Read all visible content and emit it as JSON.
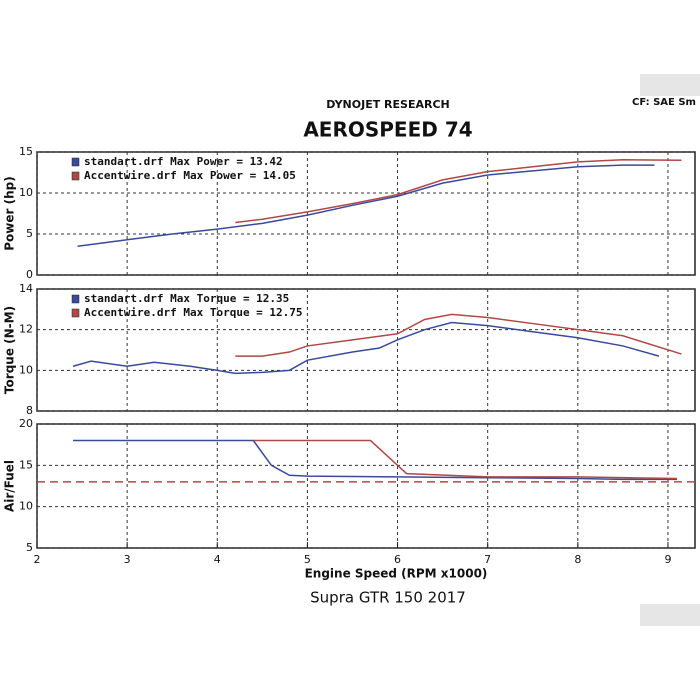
{
  "header": {
    "org": "DYNOJET RESEARCH",
    "title": "AEROSPEED 74",
    "cf": "CF: SAE  Sm"
  },
  "caption": "Supra GTR 150 2017",
  "chart_data": [
    {
      "type": "line",
      "y_label": "Power (hp)",
      "ylim": [
        0,
        15
      ],
      "yticks": [
        0,
        5,
        10,
        15
      ],
      "grid": true,
      "series": [
        {
          "name": "standart.drf Max Power = 13.42",
          "color": "#3a4a9a",
          "x": [
            2.45,
            3,
            3.5,
            4,
            4.5,
            5,
            5.5,
            6,
            6.5,
            7,
            7.5,
            8,
            8.5,
            8.85
          ],
          "values": [
            3.5,
            4.3,
            5.0,
            5.6,
            6.3,
            7.3,
            8.5,
            9.6,
            11.2,
            12.2,
            12.7,
            13.2,
            13.4,
            13.4
          ]
        },
        {
          "name": "Accentwire.drf Max Power = 14.05",
          "color": "#b04848",
          "x": [
            4.2,
            4.5,
            5,
            5.5,
            6,
            6.5,
            7,
            7.5,
            8,
            8.5,
            9.15
          ],
          "values": [
            6.4,
            6.8,
            7.7,
            8.7,
            9.8,
            11.6,
            12.6,
            13.2,
            13.8,
            14.05,
            14.0
          ]
        }
      ]
    },
    {
      "type": "line",
      "y_label": "Torque (N-M)",
      "ylim": [
        8,
        14
      ],
      "yticks": [
        8,
        10,
        12,
        14
      ],
      "grid": true,
      "series": [
        {
          "name": "standart.drf Max Torque = 12.35",
          "color": "#3a4a9a",
          "x": [
            2.4,
            2.6,
            3,
            3.3,
            3.7,
            4,
            4.2,
            4.5,
            4.8,
            5,
            5.5,
            5.8,
            6,
            6.3,
            6.6,
            7,
            7.5,
            8,
            8.5,
            8.9
          ],
          "values": [
            10.2,
            10.45,
            10.2,
            10.4,
            10.2,
            10.0,
            9.85,
            9.9,
            10.0,
            10.5,
            10.9,
            11.1,
            11.5,
            12.0,
            12.35,
            12.2,
            11.9,
            11.6,
            11.2,
            10.7
          ]
        },
        {
          "name": "Accentwire.drf Max Torque = 12.75",
          "color": "#b04848",
          "x": [
            4.2,
            4.5,
            4.8,
            5,
            5.5,
            6,
            6.3,
            6.6,
            7,
            7.5,
            8,
            8.5,
            9.15
          ],
          "values": [
            10.7,
            10.7,
            10.9,
            11.2,
            11.5,
            11.8,
            12.5,
            12.75,
            12.6,
            12.3,
            12.0,
            11.7,
            10.8
          ]
        }
      ]
    },
    {
      "type": "line",
      "y_label": "Air/Fuel",
      "x_label": "Engine Speed (RPM x1000)",
      "xlim": [
        2,
        9.3
      ],
      "xticks": [
        2,
        3,
        4,
        5,
        6,
        7,
        8,
        9
      ],
      "ylim": [
        5,
        20
      ],
      "yticks": [
        5,
        10,
        15,
        20
      ],
      "grid": true,
      "reference_line": {
        "value": 13,
        "color": "#b04848"
      },
      "series": [
        {
          "color": "#3a4a9a",
          "x": [
            2.4,
            4.4,
            4.6,
            4.8,
            5,
            6,
            7,
            8,
            8.5,
            9.1
          ],
          "values": [
            18,
            18,
            15,
            13.8,
            13.7,
            13.6,
            13.5,
            13.4,
            13.3,
            13.3
          ]
        },
        {
          "color": "#b04848",
          "x": [
            4.4,
            5.7,
            5.9,
            6.1,
            7,
            8,
            9.1
          ],
          "values": [
            18,
            18,
            16,
            14.0,
            13.6,
            13.6,
            13.4
          ]
        }
      ]
    }
  ]
}
